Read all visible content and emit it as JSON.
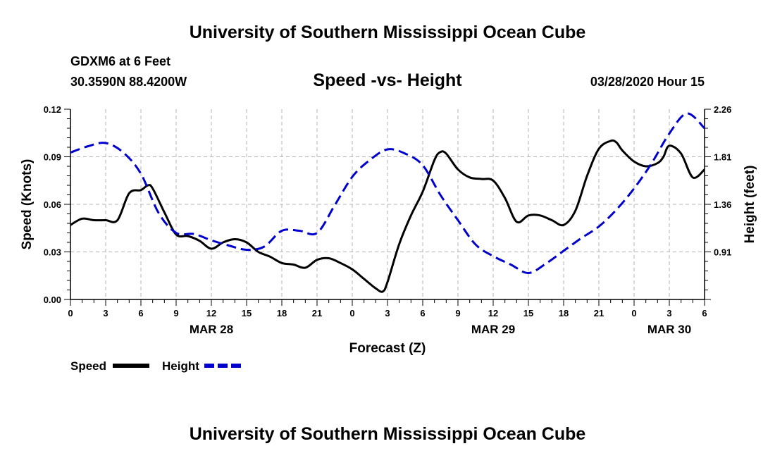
{
  "page": {
    "title_top": "University of Southern Mississippi Ocean Cube",
    "title_bottom": "University of Southern Mississippi Ocean Cube",
    "station": "GDXM6 at 6 Feet",
    "location": "30.3590N 88.4200W",
    "date": "03/28/2020 Hour 15"
  },
  "chart_data": {
    "type": "line",
    "title": "Speed -vs- Height",
    "xlabel": "Forecast (Z)",
    "ylabel": "Speed (Knots)",
    "ylabel_right": "Height (feet)",
    "xlim": [
      0,
      54
    ],
    "x_ticks": [
      0,
      3,
      6,
      9,
      12,
      15,
      18,
      21,
      24,
      27,
      30,
      33,
      36,
      39,
      42,
      45,
      48,
      51,
      54
    ],
    "x_tick_labels": [
      "0",
      "3",
      "6",
      "9",
      "12",
      "15",
      "18",
      "21",
      "0",
      "3",
      "6",
      "9",
      "12",
      "15",
      "18",
      "21",
      "0",
      "3",
      "6"
    ],
    "date_labels": [
      {
        "label": "MAR 28",
        "hour": 12
      },
      {
        "label": "MAR 29",
        "hour": 36
      },
      {
        "label": "MAR 30",
        "hour": 51
      }
    ],
    "ylim_left": [
      0,
      0.12
    ],
    "y_ticks_left": [
      "0.00",
      "0.03",
      "0.06",
      "0.09",
      "0.12"
    ],
    "ylim_right": [
      0.46,
      2.26
    ],
    "y_ticks_right": [
      "0.91",
      "1.36",
      "1.81",
      "2.26"
    ],
    "grid": true,
    "legend": [
      "Speed",
      "Height"
    ],
    "series": [
      {
        "name": "Speed",
        "color": "#000000",
        "dash": "solid",
        "axis": "left",
        "x": [
          0,
          1,
          2,
          3,
          4,
          5,
          6,
          6.6,
          7,
          8,
          9,
          10,
          11,
          12,
          13,
          14,
          15,
          16,
          17,
          18,
          19,
          20,
          21,
          22,
          23,
          24,
          25,
          26,
          26.6,
          27,
          28,
          29,
          30,
          31,
          31.5,
          32,
          33,
          34,
          35,
          36,
          37,
          38,
          39,
          40,
          41,
          42,
          43,
          44,
          45,
          46,
          46.5,
          47,
          48,
          49,
          50,
          50.5,
          51,
          52,
          53,
          54
        ],
        "y": [
          0.047,
          0.051,
          0.05,
          0.05,
          0.05,
          0.067,
          0.069,
          0.072,
          0.07,
          0.055,
          0.041,
          0.04,
          0.037,
          0.032,
          0.036,
          0.038,
          0.036,
          0.03,
          0.027,
          0.023,
          0.022,
          0.02,
          0.025,
          0.026,
          0.023,
          0.019,
          0.013,
          0.007,
          0.005,
          0.011,
          0.035,
          0.053,
          0.068,
          0.088,
          0.093,
          0.092,
          0.082,
          0.077,
          0.076,
          0.075,
          0.064,
          0.049,
          0.053,
          0.053,
          0.05,
          0.047,
          0.056,
          0.078,
          0.095,
          0.1,
          0.099,
          0.094,
          0.087,
          0.084,
          0.086,
          0.09,
          0.097,
          0.092,
          0.077,
          0.082
        ]
      },
      {
        "name": "Height",
        "color": "#0000cc",
        "dash": "dashed",
        "axis": "right",
        "x": [
          0,
          1.5,
          3,
          4.5,
          6,
          7.5,
          9,
          10.5,
          12,
          13.5,
          15,
          16.5,
          18,
          19.5,
          21,
          22.5,
          24,
          25.5,
          27,
          28.5,
          30,
          31.5,
          33,
          34.5,
          36,
          37.5,
          39,
          40.5,
          42,
          43.5,
          45,
          46.5,
          48,
          49.5,
          51,
          52.5,
          54
        ],
        "y": [
          1.85,
          1.91,
          1.94,
          1.85,
          1.65,
          1.28,
          1.09,
          1.08,
          1.02,
          0.97,
          0.93,
          0.96,
          1.11,
          1.11,
          1.09,
          1.35,
          1.62,
          1.78,
          1.88,
          1.84,
          1.73,
          1.45,
          1.21,
          0.98,
          0.87,
          0.79,
          0.71,
          0.8,
          0.92,
          1.04,
          1.15,
          1.31,
          1.51,
          1.75,
          2.03,
          2.22,
          2.08
        ]
      }
    ]
  }
}
